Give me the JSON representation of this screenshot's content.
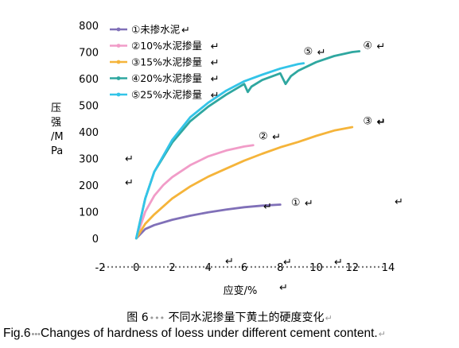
{
  "chart_data": {
    "type": "line",
    "xlabel": "应变/%",
    "ylabel": "压强/MPa",
    "xlim": [
      -2,
      14
    ],
    "ylim": [
      0,
      800
    ],
    "xticks": [
      -2,
      0,
      2,
      4,
      6,
      8,
      10,
      12,
      14
    ],
    "yticks": [
      0,
      100,
      200,
      300,
      400,
      500,
      600,
      700,
      800
    ],
    "grid": false,
    "legend_position": "top-left",
    "series": [
      {
        "name": "①未掺水泥",
        "marker": "①",
        "color": "#8070b8",
        "x": [
          0,
          0.5,
          1,
          2,
          3,
          4,
          5,
          6,
          7,
          8
        ],
        "y": [
          0,
          35,
          50,
          70,
          85,
          98,
          108,
          117,
          123,
          127
        ]
      },
      {
        "name": "②10%水泥掺量",
        "marker": "②",
        "color": "#f19cc8",
        "x": [
          0,
          0.5,
          1,
          1.5,
          2,
          3,
          4,
          5,
          6,
          6.5
        ],
        "y": [
          0,
          100,
          160,
          200,
          230,
          275,
          308,
          330,
          345,
          350
        ]
      },
      {
        "name": "③15%水泥掺量",
        "marker": "③",
        "color": "#f5b43a",
        "x": [
          0,
          0.5,
          1,
          2,
          3,
          4,
          5,
          6,
          7,
          8,
          9,
          10,
          11,
          12
        ],
        "y": [
          0,
          55,
          90,
          150,
          195,
          232,
          262,
          292,
          318,
          342,
          362,
          385,
          405,
          418
        ]
      },
      {
        "name": "④20%水泥掺量",
        "marker": "④",
        "color": "#2fa7a0",
        "x": [
          0,
          0.5,
          1,
          2,
          3,
          4,
          5,
          6,
          6.2,
          6.4,
          7,
          8,
          8.3,
          8.6,
          9,
          10,
          11,
          12,
          12.4
        ],
        "y": [
          0,
          150,
          250,
          360,
          440,
          495,
          540,
          580,
          550,
          570,
          595,
          620,
          580,
          610,
          630,
          662,
          685,
          700,
          703
        ]
      },
      {
        "name": "⑤25%水泥掺量",
        "marker": "⑤",
        "color": "#33c4e8",
        "x": [
          0,
          0.5,
          1,
          2,
          3,
          4,
          5,
          6,
          7,
          8,
          9,
          9.3
        ],
        "y": [
          0,
          150,
          250,
          370,
          455,
          510,
          555,
          590,
          615,
          638,
          655,
          658
        ]
      }
    ]
  },
  "caption": {
    "cn_prefix": "图 6",
    "cn_text": "不同水泥掺量下黄土的硬度变化",
    "en_prefix": "Fig.6",
    "en_text": "Changes of hardness of loess under different cement content."
  },
  "stray_marks": {
    "arrow": "↵"
  }
}
